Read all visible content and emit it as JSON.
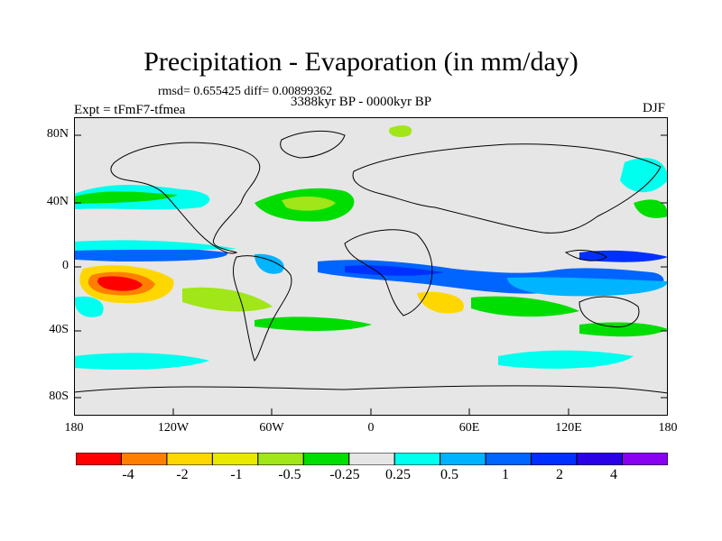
{
  "title": "Precipitation - Evaporation (in mm/day)",
  "stats": "rmsd= 0.655425 diff= 0.00899362",
  "period": "3388kyr BP - 0000kyr BP",
  "experiment": "Expt = tFmF7-tfmea",
  "season": "DJF",
  "lat_labels": [
    "80N",
    "40N",
    "0",
    "40S",
    "80S"
  ],
  "lon_labels": [
    "180",
    "120W",
    "60W",
    "0",
    "60E",
    "120E",
    "180"
  ],
  "colorbar": {
    "colors": [
      "#ff0000",
      "#ff8000",
      "#ffd700",
      "#e8e800",
      "#a0e619",
      "#00dd00",
      "#e6e6e6",
      "#00ffee",
      "#00b4ff",
      "#0064ff",
      "#0030ff",
      "#2a00e6",
      "#8a00f0"
    ],
    "labels": [
      "-4",
      "-2",
      "-1",
      "-0.5",
      "-0.25",
      "0.25",
      "0.5",
      "1",
      "2",
      "4"
    ]
  }
}
